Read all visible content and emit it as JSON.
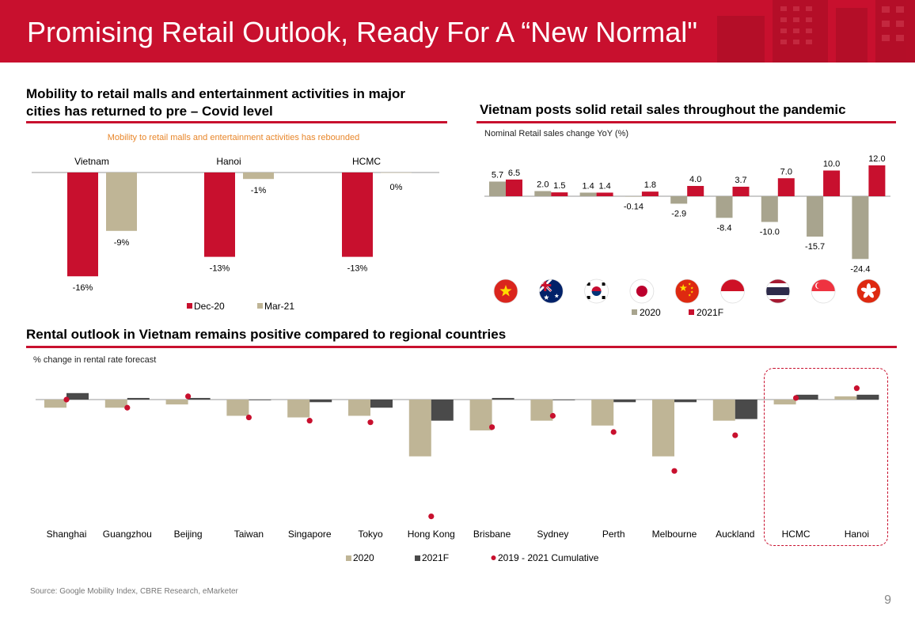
{
  "header": {
    "title": "Promising Retail Outlook, Ready For A “New Normal\""
  },
  "colors": {
    "brand_red": "#c8102e",
    "tan": "#bfb596",
    "tan_dark": "#a8a48e",
    "dark_grey": "#4a4a4a"
  },
  "sections": {
    "mobility_title": "Mobility to retail malls and entertainment activities in major cities has returned to pre – Covid level",
    "retail_title": "Vietnam posts solid retail sales throughout the pandemic",
    "rental_title": "Rental outlook in Vietnam remains positive compared to regional countries"
  },
  "footer": {
    "source": "Source: Google Mobility Index, CBRE Research, eMarketer",
    "page_number": "9"
  },
  "chart_data": [
    {
      "id": "mobility",
      "type": "bar",
      "subtitle": "Mobility to retail malls and entertainment activities has rebounded",
      "categories": [
        "Vietnam",
        "Hanoi",
        "HCMC"
      ],
      "series": [
        {
          "name": "Dec-20",
          "values": [
            -16,
            -13,
            -13
          ],
          "labels": [
            "-16%",
            "-13%",
            "-13%"
          ],
          "color": "#c8102e"
        },
        {
          "name": "Mar-21",
          "values": [
            -9,
            -1,
            0
          ],
          "labels": [
            "-9%",
            "-1%",
            "0%"
          ],
          "color": "#bfb596"
        }
      ],
      "ylim": [
        -17,
        0
      ],
      "legend": "bottom"
    },
    {
      "id": "retail",
      "type": "bar",
      "title": "Nominal Retail sales change YoY (%)",
      "categories": [
        "Vietnam",
        "Australia",
        "South Korea",
        "Japan",
        "China",
        "Indonesia",
        "Thailand",
        "Singapore",
        "Hong Kong"
      ],
      "category_icons": [
        "vietnam-flag-icon",
        "australia-flag-icon",
        "south-korea-flag-icon",
        "japan-flag-icon",
        "china-flag-icon",
        "indonesia-flag-icon",
        "thailand-flag-icon",
        "singapore-flag-icon",
        "hong-kong-flag-icon"
      ],
      "series": [
        {
          "name": "2020",
          "values": [
            5.7,
            2.0,
            1.4,
            -0.14,
            -2.9,
            -8.4,
            -10.0,
            -15.7,
            -24.4
          ],
          "labels": [
            "5.7",
            "2.0",
            "1.4",
            "-0.14",
            "-2.9",
            "-8.4",
            "-10.0",
            "-15.7",
            "-24.4"
          ],
          "color": "#a8a48e"
        },
        {
          "name": "2021F",
          "values": [
            6.5,
            1.5,
            1.4,
            1.8,
            4.0,
            3.7,
            7.0,
            10.0,
            12.0
          ],
          "labels": [
            "6.5",
            "1.5",
            "1.4",
            "1.8",
            "4.0",
            "3.7",
            "7.0",
            "10.0",
            "12.0"
          ],
          "color": "#c8102e"
        }
      ],
      "ylim": [
        -25,
        12
      ],
      "legend": "bottom"
    },
    {
      "id": "rental",
      "type": "bar",
      "title": "% change in rental rate forecast",
      "categories": [
        "Shanghai",
        "Guangzhou",
        "Beijing",
        "Taiwan",
        "Singapore",
        "Tokyo",
        "Hong Kong",
        "Brisbane",
        "Sydney",
        "Perth",
        "Melbourne",
        "Auckland",
        "HCMC",
        "Hanoi"
      ],
      "series": [
        {
          "name": "2020",
          "values": [
            -2.5,
            -2.5,
            -1.5,
            -5,
            -5.5,
            -5,
            -17.5,
            -9.5,
            -6.5,
            -8,
            -17.5,
            -6.5,
            -1.5,
            1
          ],
          "color": "#bfb596"
        },
        {
          "name": "2021F",
          "values": [
            2,
            0.5,
            0.5,
            0,
            -0.8,
            -2.5,
            -6.5,
            0.5,
            0,
            -0.8,
            -0.8,
            -6,
            1.5,
            1.5
          ],
          "color": "#4a4a4a"
        },
        {
          "name": "2019 - 2021 Cumulative",
          "type": "scatter",
          "values": [
            0,
            -2.5,
            1,
            -5.5,
            -6.5,
            -7,
            -36,
            -8.5,
            -5,
            -10,
            -22,
            -11,
            0.5,
            3.5
          ],
          "color": "#c8102e"
        }
      ],
      "ylim": [
        -40,
        5
      ],
      "legend": "bottom",
      "highlighted_categories": [
        "HCMC",
        "Hanoi"
      ]
    }
  ]
}
